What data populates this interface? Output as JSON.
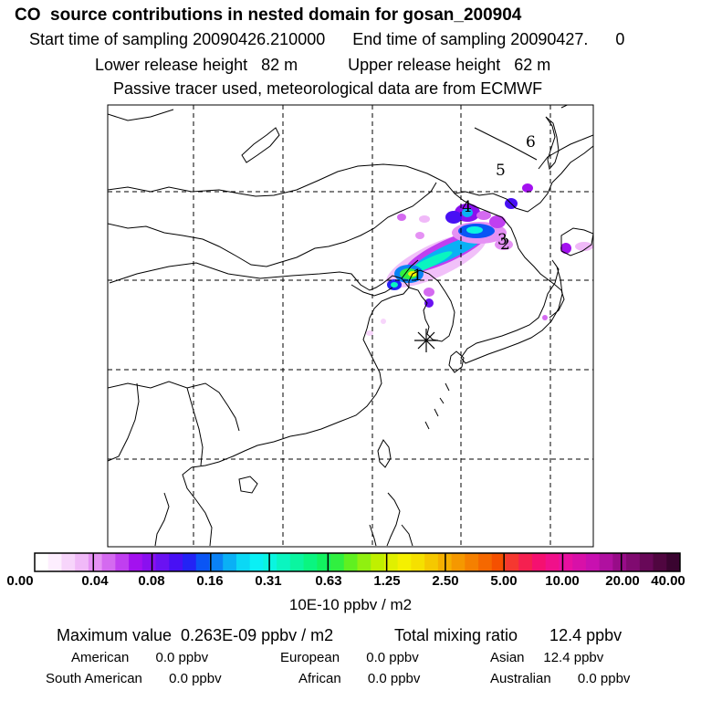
{
  "header": {
    "title": "CO  source contributions in nested domain for gosan_200904",
    "line2": "Start time of sampling 20090426.210000      End time of sampling 20090427.      0",
    "line3": "Lower release height   82 m           Upper release height   62 m",
    "line4": "Passive tracer used, meteorological data are from ECMWF"
  },
  "map": {
    "grid": "dashed",
    "source_labels": [
      "1",
      "2",
      "3",
      "4",
      "5",
      "6"
    ],
    "receptor_marker": "asterisk"
  },
  "colorbar": {
    "tick_labels": [
      "0.00",
      "0.04",
      "0.08",
      "0.16",
      "0.31",
      "0.63",
      "1.25",
      "2.50",
      "5.00",
      "10.00",
      "20.00",
      "40.00"
    ],
    "unit_label": "10E-10 ppbv / m2",
    "colors": [
      "#ffffff",
      "#fdeefe",
      "#f7d5fb",
      "#f0b9f8",
      "#e591f4",
      "#d46af0",
      "#c03ff0",
      "#a311ef",
      "#8a10ef",
      "#6a12f2",
      "#4810f4",
      "#2323f5",
      "#0a55f5",
      "#0a82f5",
      "#0ab0f5",
      "#0bd8f5",
      "#0af0f5",
      "#0af5e0",
      "#0af5c0",
      "#0af5a0",
      "#0af580",
      "#12f260",
      "#30f040",
      "#60f020",
      "#90f010",
      "#c0f000",
      "#e0f000",
      "#f5f000",
      "#f5e000",
      "#f5c800",
      "#f5b000",
      "#f59800",
      "#f58000",
      "#f56800",
      "#f55000",
      "#f53830",
      "#f52050",
      "#f51070",
      "#f0108a",
      "#e810a0",
      "#d810a8",
      "#c810b0",
      "#b010a0",
      "#980c88",
      "#800a70",
      "#680858",
      "#500640",
      "#3a0430"
    ]
  },
  "footer": {
    "max_label": "Maximum value  0.263E-09 ppbv / m2",
    "total_label": "Total mixing ratio       12.4 ppbv",
    "american": "American       0.0 ppbv",
    "european": "European       0.0 ppbv",
    "asian": "Asian     12.4 ppbv",
    "south_american": "South American       0.0 ppbv",
    "african": "African       0.0 ppbv",
    "australian": "Australian       0.0 ppbv"
  }
}
